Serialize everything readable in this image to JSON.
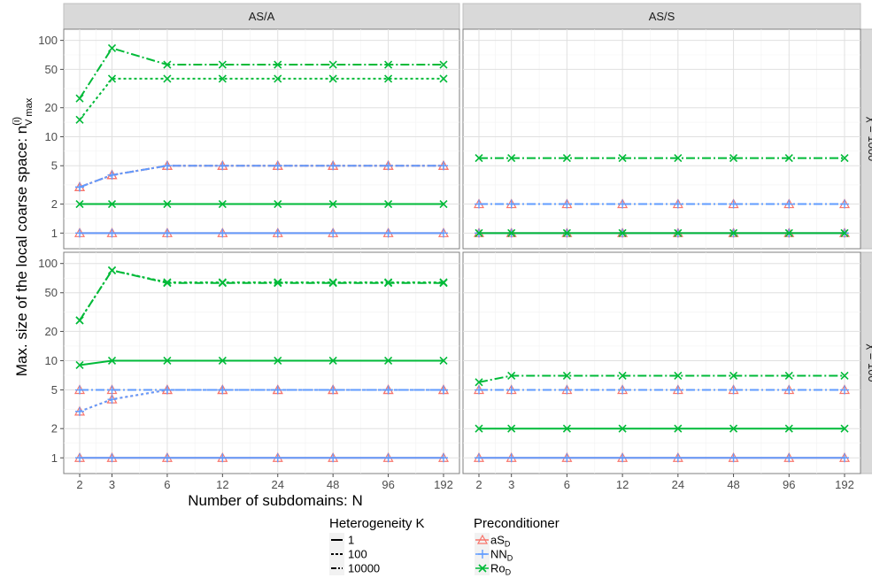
{
  "chart_data": {
    "type": "line",
    "ylabel": "Max. size of the local coarse space: n",
    "ylabel_sup": "(i)",
    "ylabel_sub": "V max",
    "xlabel": "Number of subdomains: N",
    "x": [
      2,
      3,
      6,
      12,
      24,
      48,
      96,
      192
    ],
    "x_scale": "log",
    "y_scale": "log",
    "y_ticks": [
      1,
      2,
      5,
      10,
      20,
      50,
      100
    ],
    "columns": [
      "AS/A",
      "AS/S"
    ],
    "rows": [
      "χ = 1000",
      "χ = 100"
    ],
    "grid": true,
    "legend_position": "bottom",
    "legends": {
      "heterogeneity": {
        "title": "Heterogeneity K",
        "entries": [
          "1",
          "100",
          "10000"
        ],
        "linetypes": [
          "solid",
          "dashed",
          "dashdot"
        ]
      },
      "preconditioner": {
        "title": "Preconditioner",
        "entries": [
          {
            "base": "aS",
            "sub": "D",
            "color": "#F8766D",
            "marker": "triangle"
          },
          {
            "base": "NN",
            "sub": "D",
            "color": "#619CFF",
            "marker": "plus"
          },
          {
            "base": "Ro",
            "sub": "D",
            "color": "#00BA38",
            "marker": "cross"
          }
        ]
      }
    },
    "panels": [
      {
        "col": "AS/A",
        "row": "χ = 1000",
        "series": [
          {
            "precond": "aS_D",
            "K": "1",
            "values": [
              1,
              1,
              1,
              1,
              1,
              1,
              1,
              1
            ]
          },
          {
            "precond": "NN_D",
            "K": "1",
            "values": [
              1,
              1,
              1,
              1,
              1,
              1,
              1,
              1
            ]
          },
          {
            "precond": "Ro_D",
            "K": "1",
            "values": [
              2,
              2,
              2,
              2,
              2,
              2,
              2,
              2
            ]
          },
          {
            "precond": "aS_D",
            "K": "100",
            "values": [
              3,
              4,
              5,
              5,
              5,
              5,
              5,
              5
            ]
          },
          {
            "precond": "NN_D",
            "K": "100",
            "values": [
              3,
              4,
              5,
              5,
              5,
              5,
              5,
              5
            ]
          },
          {
            "precond": "Ro_D",
            "K": "100",
            "values": [
              15,
              40,
              40,
              40,
              40,
              40,
              40,
              40
            ]
          },
          {
            "precond": "aS_D",
            "K": "10000",
            "values": [
              3,
              4,
              5,
              5,
              5,
              5,
              5,
              5
            ]
          },
          {
            "precond": "NN_D",
            "K": "10000",
            "values": [
              3,
              4,
              5,
              5,
              5,
              5,
              5,
              5
            ]
          },
          {
            "precond": "Ro_D",
            "K": "10000",
            "values": [
              25,
              83,
              56,
              56,
              56,
              56,
              56,
              56
            ]
          }
        ]
      },
      {
        "col": "AS/S",
        "row": "χ = 1000",
        "series": [
          {
            "precond": "aS_D",
            "K": "1",
            "values": [
              1,
              1,
              1,
              1,
              1,
              1,
              1,
              1
            ]
          },
          {
            "precond": "NN_D",
            "K": "1",
            "values": [
              1,
              1,
              1,
              1,
              1,
              1,
              1,
              1
            ]
          },
          {
            "precond": "Ro_D",
            "K": "1",
            "values": [
              1,
              1,
              1,
              1,
              1,
              1,
              1,
              1
            ]
          },
          {
            "precond": "aS_D",
            "K": "10000",
            "values": [
              2,
              2,
              2,
              2,
              2,
              2,
              2,
              2
            ]
          },
          {
            "precond": "NN_D",
            "K": "10000",
            "values": [
              2,
              2,
              2,
              2,
              2,
              2,
              2,
              2
            ]
          },
          {
            "precond": "Ro_D",
            "K": "10000",
            "values": [
              6,
              6,
              6,
              6,
              6,
              6,
              6,
              6
            ]
          }
        ]
      },
      {
        "col": "AS/A",
        "row": "χ = 100",
        "series": [
          {
            "precond": "aS_D",
            "K": "1",
            "values": [
              1,
              1,
              1,
              1,
              1,
              1,
              1,
              1
            ]
          },
          {
            "precond": "NN_D",
            "K": "1",
            "values": [
              1,
              1,
              1,
              1,
              1,
              1,
              1,
              1
            ]
          },
          {
            "precond": "Ro_D",
            "K": "1",
            "values": [
              9,
              10,
              10,
              10,
              10,
              10,
              10,
              10
            ]
          },
          {
            "precond": "aS_D",
            "K": "100",
            "values": [
              3,
              4,
              5,
              5,
              5,
              5,
              5,
              5
            ]
          },
          {
            "precond": "NN_D",
            "K": "100",
            "values": [
              3,
              4,
              5,
              5,
              5,
              5,
              5,
              5
            ]
          },
          {
            "precond": "Ro_D",
            "K": "100",
            "values": [
              26,
              85,
              64,
              64,
              64,
              64,
              64,
              64
            ]
          },
          {
            "precond": "aS_D",
            "K": "10000",
            "values": [
              5,
              5,
              5,
              5,
              5,
              5,
              5,
              5
            ]
          },
          {
            "precond": "NN_D",
            "K": "10000",
            "values": [
              5,
              5,
              5,
              5,
              5,
              5,
              5,
              5
            ]
          },
          {
            "precond": "Ro_D",
            "K": "10000",
            "values": [
              26,
              85,
              63,
              63,
              63,
              63,
              63,
              63
            ]
          }
        ]
      },
      {
        "col": "AS/S",
        "row": "χ = 100",
        "series": [
          {
            "precond": "aS_D",
            "K": "1",
            "values": [
              1,
              1,
              1,
              1,
              1,
              1,
              1,
              1
            ]
          },
          {
            "precond": "NN_D",
            "K": "1",
            "values": [
              1,
              1,
              1,
              1,
              1,
              1,
              1,
              1
            ]
          },
          {
            "precond": "Ro_D",
            "K": "1",
            "values": [
              2,
              2,
              2,
              2,
              2,
              2,
              2,
              2
            ]
          },
          {
            "precond": "aS_D",
            "K": "10000",
            "values": [
              5,
              5,
              5,
              5,
              5,
              5,
              5,
              5
            ]
          },
          {
            "precond": "NN_D",
            "K": "10000",
            "values": [
              5,
              5,
              5,
              5,
              5,
              5,
              5,
              5
            ]
          },
          {
            "precond": "Ro_D",
            "K": "10000",
            "values": [
              6,
              7,
              7,
              7,
              7,
              7,
              7,
              7
            ]
          }
        ]
      }
    ]
  }
}
